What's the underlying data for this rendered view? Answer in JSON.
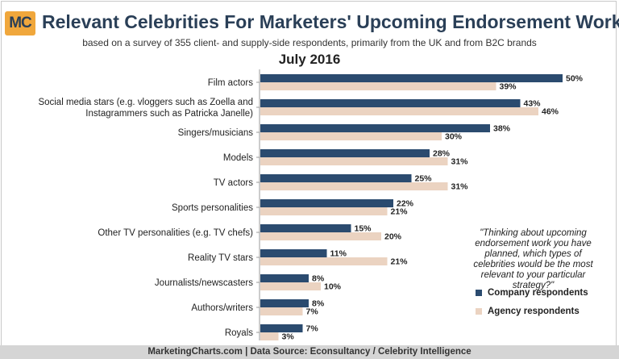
{
  "logo": "MC",
  "title": "Relevant Celebrities For Marketers' Upcoming Endorsement Work",
  "subtitle": "based on a survey of 355 client- and supply-side respondents, primarily from the UK and from B2C brands",
  "date": "July 2016",
  "quote": "\"Thinking about upcoming endorsement work you have planned, which types of celebrities would be the most relevant to your particular strategy?\"",
  "footer": "MarketingCharts.com | Data Source: Econsultancy / Celebrity Intelligence",
  "colors": {
    "company": "#2b4b6f",
    "agency": "#ebd3c1",
    "title": "#2a3f57",
    "logo_bg": "#f0a73c"
  },
  "chart_data": {
    "type": "bar",
    "orientation": "horizontal",
    "title": "Relevant Celebrities For Marketers' Upcoming Endorsement Work",
    "xlim": [
      0,
      50
    ],
    "value_suffix": "%",
    "categories": [
      [
        "Film actors"
      ],
      [
        "Social media stars (e.g. vloggers such as Zoella and",
        "Instagrammers such as Patricka Janelle)"
      ],
      [
        "Singers/musicians"
      ],
      [
        "Models"
      ],
      [
        "TV actors"
      ],
      [
        "Sports personalities"
      ],
      [
        "Other TV personalities (e.g. TV chefs)"
      ],
      [
        "Reality TV stars"
      ],
      [
        "Journalists/newscasters"
      ],
      [
        "Authors/writers"
      ],
      [
        "Royals"
      ]
    ],
    "series": [
      {
        "name": "Company respondents",
        "values": [
          50,
          43,
          38,
          28,
          25,
          22,
          15,
          11,
          8,
          8,
          7
        ]
      },
      {
        "name": "Agency respondents",
        "values": [
          39,
          46,
          30,
          31,
          31,
          21,
          20,
          21,
          10,
          7,
          3
        ]
      }
    ],
    "legend_position": "right"
  }
}
